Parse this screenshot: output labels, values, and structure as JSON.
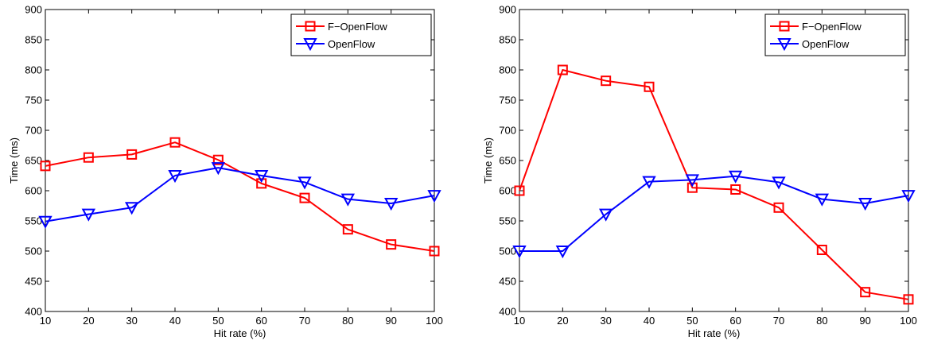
{
  "chart_data": [
    {
      "type": "line",
      "xlabel": "Hit rate (%)",
      "ylabel": "Time (ms)",
      "x": [
        10,
        20,
        30,
        40,
        50,
        60,
        70,
        80,
        90,
        100
      ],
      "xticks": [
        "10",
        "20",
        "30",
        "40",
        "50",
        "60",
        "70",
        "80",
        "90",
        "100"
      ],
      "ylim": [
        400,
        900
      ],
      "yticks": [
        "400",
        "450",
        "500",
        "550",
        "600",
        "650",
        "700",
        "750",
        "800",
        "850",
        "900"
      ],
      "grid": false,
      "legend_position": "top-right",
      "series": [
        {
          "name": "F−OpenFlow",
          "color": "#ff0000",
          "marker": "square",
          "values": [
            641,
            655,
            660,
            680,
            651,
            612,
            588,
            536,
            511,
            500
          ]
        },
        {
          "name": "OpenFlow",
          "color": "#0000ff",
          "marker": "triangle-down",
          "values": [
            549,
            561,
            572,
            625,
            638,
            625,
            614,
            586,
            579,
            592
          ]
        }
      ]
    },
    {
      "type": "line",
      "xlabel": "Hit rate (%)",
      "ylabel": "Time (ms)",
      "x": [
        10,
        20,
        30,
        40,
        50,
        60,
        70,
        80,
        90,
        100
      ],
      "xticks": [
        "10",
        "20",
        "30",
        "40",
        "50",
        "60",
        "70",
        "80",
        "90",
        "100"
      ],
      "ylim": [
        400,
        900
      ],
      "yticks": [
        "400",
        "450",
        "500",
        "550",
        "600",
        "650",
        "700",
        "750",
        "800",
        "850",
        "900"
      ],
      "grid": false,
      "legend_position": "top-right",
      "series": [
        {
          "name": "F−OpenFlow",
          "color": "#ff0000",
          "marker": "square",
          "values": [
            600,
            800,
            782,
            772,
            605,
            602,
            572,
            502,
            432,
            420
          ]
        },
        {
          "name": "OpenFlow",
          "color": "#0000ff",
          "marker": "triangle-down",
          "values": [
            500,
            500,
            561,
            615,
            618,
            624,
            614,
            586,
            579,
            592
          ]
        }
      ]
    }
  ]
}
